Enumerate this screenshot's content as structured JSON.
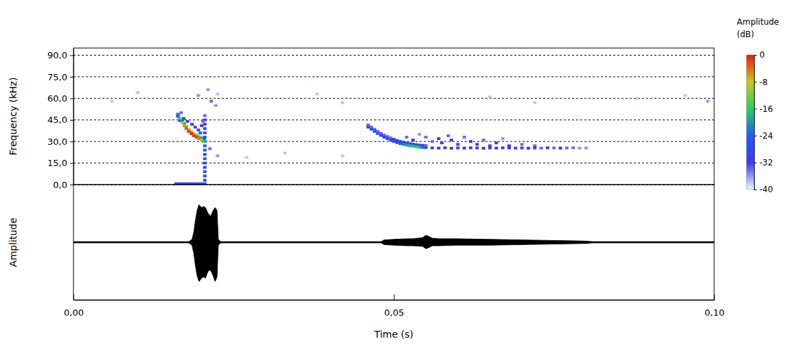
{
  "chart_data": [
    {
      "type": "heatmap",
      "y_label": "Frequency (kHz)",
      "xlim": [
        0,
        0.1
      ],
      "ylim": [
        0,
        95
      ],
      "yticks": [
        {
          "value": 0,
          "label": "0,0"
        },
        {
          "value": 15,
          "label": "15,0"
        },
        {
          "value": 30,
          "label": "30,0"
        },
        {
          "value": 45,
          "label": "45,0"
        },
        {
          "value": 60,
          "label": "60,0"
        },
        {
          "value": 75,
          "label": "75,0"
        },
        {
          "value": 90,
          "label": "90,0"
        }
      ],
      "grid": true,
      "tick_labels": "y",
      "colorbar": {
        "title": "Amplitude (dB)",
        "range": [
          -40,
          0
        ],
        "ticks": [
          0,
          -8,
          -16,
          -24,
          -32,
          -40
        ]
      },
      "cells": [
        [
          0.0195,
          62,
          -36
        ],
        [
          0.021,
          66,
          -36
        ],
        [
          0.0215,
          58,
          -34
        ],
        [
          0.0222,
          55,
          -36
        ],
        [
          0.0225,
          63,
          -38
        ],
        [
          0.01,
          64,
          -38
        ],
        [
          0.006,
          58,
          -38
        ],
        [
          0.03,
          60,
          -38
        ],
        [
          0.038,
          63,
          -38
        ],
        [
          0.042,
          57,
          -38
        ],
        [
          0.065,
          61,
          -38
        ],
        [
          0.072,
          57,
          -38
        ],
        [
          0.088,
          60,
          -38
        ],
        [
          0.0955,
          62,
          -38
        ],
        [
          0.099,
          58,
          -36
        ],
        [
          0.033,
          22,
          -38
        ],
        [
          0.042,
          20,
          -38
        ],
        [
          0.027,
          19,
          -38
        ],
        [
          0.0225,
          20,
          -36
        ],
        [
          0.0213,
          25,
          -34
        ],
        [
          0.016,
          0.6,
          -30
        ],
        [
          0.0165,
          0.6,
          -30
        ],
        [
          0.017,
          0.6,
          -30
        ],
        [
          0.0175,
          0.6,
          -30
        ],
        [
          0.018,
          0.6,
          -30
        ],
        [
          0.0185,
          0.6,
          -30
        ],
        [
          0.019,
          0.6,
          -30
        ],
        [
          0.0195,
          0.6,
          -30
        ],
        [
          0.02,
          0.6,
          -30
        ],
        [
          0.0205,
          0.6,
          -28
        ],
        [
          0.0205,
          3,
          -30
        ],
        [
          0.0205,
          6,
          -30
        ],
        [
          0.0205,
          9,
          -28
        ],
        [
          0.0205,
          12,
          -30
        ],
        [
          0.0205,
          15,
          -30
        ],
        [
          0.0205,
          18,
          -28
        ],
        [
          0.0205,
          21,
          -30
        ],
        [
          0.0205,
          24,
          -26
        ],
        [
          0.0205,
          27,
          -26
        ],
        [
          0.0205,
          30,
          -24
        ],
        [
          0.0205,
          33,
          -28
        ],
        [
          0.0205,
          36,
          -30
        ],
        [
          0.0205,
          39,
          -30
        ],
        [
          0.0205,
          42,
          -32
        ],
        [
          0.0205,
          45,
          -32
        ],
        [
          0.0205,
          48,
          -34
        ],
        [
          0.0172,
          46,
          -32
        ],
        [
          0.0178,
          44,
          -30
        ],
        [
          0.0185,
          42,
          -32
        ],
        [
          0.019,
          40,
          -28
        ],
        [
          0.0195,
          38,
          -30
        ],
        [
          0.0198,
          36,
          -26
        ],
        [
          0.02,
          41,
          -32
        ],
        [
          0.0202,
          44,
          -34
        ],
        [
          0.0168,
          50,
          -34
        ],
        [
          0.0163,
          47.5,
          -30
        ],
        [
          0.0166,
          44.5,
          -26
        ],
        [
          0.017,
          44.5,
          -22
        ],
        [
          0.0173,
          42.5,
          -18
        ],
        [
          0.0176,
          40.5,
          -14
        ],
        [
          0.018,
          38.5,
          -10
        ],
        [
          0.0184,
          37,
          -8
        ],
        [
          0.0188,
          35.5,
          -10
        ],
        [
          0.0192,
          34.5,
          -12
        ],
        [
          0.0196,
          33.5,
          -14
        ],
        [
          0.02,
          32.5,
          -20
        ],
        [
          0.0204,
          31.5,
          -24
        ],
        [
          0.0163,
          49,
          -22
        ],
        [
          0.0166,
          46,
          -16
        ],
        [
          0.017,
          43,
          -10
        ],
        [
          0.0173,
          41,
          -6
        ],
        [
          0.0176,
          39,
          -3
        ],
        [
          0.018,
          37,
          -1
        ],
        [
          0.0184,
          35.5,
          0
        ],
        [
          0.0188,
          34,
          -1
        ],
        [
          0.0192,
          33,
          -2
        ],
        [
          0.0196,
          32,
          -4
        ],
        [
          0.02,
          31,
          -10
        ],
        [
          0.0204,
          30,
          -16
        ],
        [
          0.056,
          30,
          -34
        ],
        [
          0.057,
          32,
          -32
        ],
        [
          0.0575,
          29,
          -30
        ],
        [
          0.0585,
          34,
          -34
        ],
        [
          0.059,
          31,
          -32
        ],
        [
          0.06,
          28,
          -30
        ],
        [
          0.061,
          33,
          -34
        ],
        [
          0.062,
          30,
          -32
        ],
        [
          0.063,
          28,
          -30
        ],
        [
          0.064,
          31,
          -34
        ],
        [
          0.065,
          27,
          -32
        ],
        [
          0.066,
          29,
          -30
        ],
        [
          0.067,
          32,
          -36
        ],
        [
          0.068,
          27,
          -32
        ],
        [
          0.07,
          28,
          -34
        ],
        [
          0.072,
          27,
          -34
        ],
        [
          0.055,
          33,
          -34
        ],
        [
          0.054,
          35,
          -36
        ],
        [
          0.053,
          31,
          -32
        ],
        [
          0.052,
          33,
          -34
        ],
        [
          0.056,
          25.5,
          -30
        ],
        [
          0.057,
          25.4,
          -32
        ],
        [
          0.058,
          25.6,
          -32
        ],
        [
          0.059,
          25.3,
          -30
        ],
        [
          0.06,
          25.5,
          -32
        ],
        [
          0.061,
          25.4,
          -32
        ],
        [
          0.062,
          25.6,
          -30
        ],
        [
          0.063,
          25.5,
          -32
        ],
        [
          0.064,
          25.3,
          -32
        ],
        [
          0.065,
          25.5,
          -30
        ],
        [
          0.066,
          25.4,
          -32
        ],
        [
          0.067,
          25.6,
          -32
        ],
        [
          0.068,
          25.5,
          -32
        ],
        [
          0.069,
          25.4,
          -30
        ],
        [
          0.07,
          25.5,
          -32
        ],
        [
          0.071,
          25.3,
          -32
        ],
        [
          0.072,
          25.5,
          -32
        ],
        [
          0.073,
          25.4,
          -34
        ],
        [
          0.074,
          25.6,
          -32
        ],
        [
          0.075,
          25.5,
          -34
        ],
        [
          0.076,
          25.4,
          -32
        ],
        [
          0.077,
          25.5,
          -34
        ],
        [
          0.078,
          25.6,
          -34
        ],
        [
          0.079,
          25.4,
          -36
        ],
        [
          0.08,
          25.5,
          -36
        ],
        [
          0.046,
          41.5,
          -34
        ],
        [
          0.0465,
          40,
          -34
        ],
        [
          0.047,
          38.5,
          -34
        ],
        [
          0.0475,
          37,
          -34
        ],
        [
          0.048,
          35.7,
          -34
        ],
        [
          0.0485,
          34.5,
          -34
        ],
        [
          0.049,
          33.5,
          -34
        ],
        [
          0.0495,
          32.5,
          -34
        ],
        [
          0.05,
          31.5,
          -32
        ],
        [
          0.0505,
          30.7,
          -32
        ],
        [
          0.051,
          30,
          -32
        ],
        [
          0.0515,
          29.5,
          -30
        ],
        [
          0.052,
          29,
          -30
        ],
        [
          0.0525,
          28.5,
          -28
        ],
        [
          0.053,
          28.1,
          -28
        ],
        [
          0.0535,
          27.8,
          -28
        ],
        [
          0.054,
          27.5,
          -30
        ],
        [
          0.0545,
          27.3,
          -32
        ],
        [
          0.055,
          27.2,
          -34
        ],
        [
          0.046,
          40,
          -28
        ],
        [
          0.0465,
          38.5,
          -28
        ],
        [
          0.047,
          37,
          -26
        ],
        [
          0.0475,
          35.5,
          -28
        ],
        [
          0.048,
          34.2,
          -28
        ],
        [
          0.0485,
          33,
          -30
        ],
        [
          0.049,
          32,
          -28
        ],
        [
          0.0495,
          31,
          -28
        ],
        [
          0.05,
          30,
          -26
        ],
        [
          0.0505,
          29.2,
          -26
        ],
        [
          0.051,
          28.5,
          -24
        ],
        [
          0.0515,
          28,
          -22
        ],
        [
          0.052,
          27.5,
          -20
        ],
        [
          0.0525,
          27,
          -18
        ],
        [
          0.053,
          26.6,
          -16
        ],
        [
          0.0535,
          26.3,
          -16
        ],
        [
          0.054,
          26,
          -18
        ],
        [
          0.0545,
          25.8,
          -22
        ],
        [
          0.055,
          25.7,
          -26
        ]
      ]
    },
    {
      "type": "area",
      "x_label": "Time (s)",
      "y_label": "Amplitude",
      "xlim": [
        0,
        0.1
      ],
      "ylim": [
        -1,
        1
      ],
      "xticks": [
        {
          "value": 0,
          "label": "0,00"
        },
        {
          "value": 0.05,
          "label": "0,05"
        },
        {
          "value": 0.1,
          "label": "0,10"
        }
      ],
      "tick_labels": "x",
      "color": "#000000",
      "x": [
        0,
        0.018,
        0.0185,
        0.0188,
        0.019,
        0.0193,
        0.0196,
        0.02,
        0.0203,
        0.0206,
        0.021,
        0.0214,
        0.0218,
        0.0221,
        0.0224,
        0.0226,
        0.023,
        0.048,
        0.0485,
        0.05,
        0.052,
        0.053,
        0.0545,
        0.055,
        0.0555,
        0.056,
        0.057,
        0.06,
        0.065,
        0.07,
        0.075,
        0.08,
        0.081,
        0.1
      ],
      "series": [
        {
          "values": [
            0.01,
            0.01,
            0.05,
            0.18,
            0.35,
            0.55,
            0.65,
            0.6,
            0.62,
            0.6,
            0.5,
            0.45,
            0.55,
            0.6,
            0.55,
            0.05,
            0.01,
            0.01,
            0.04,
            0.05,
            0.06,
            0.06,
            0.08,
            0.12,
            0.1,
            0.07,
            0.06,
            0.06,
            0.05,
            0.04,
            0.03,
            0.02,
            0.01,
            0.01
          ]
        },
        {
          "values": [
            -0.01,
            -0.01,
            -0.05,
            -0.2,
            -0.38,
            -0.58,
            -0.68,
            -0.62,
            -0.6,
            -0.62,
            -0.5,
            -0.48,
            -0.58,
            -0.68,
            -0.6,
            -0.05,
            -0.01,
            -0.01,
            -0.04,
            -0.05,
            -0.06,
            -0.06,
            -0.07,
            -0.11,
            -0.09,
            -0.06,
            -0.06,
            -0.05,
            -0.05,
            -0.04,
            -0.03,
            -0.02,
            -0.01,
            -0.01
          ]
        }
      ]
    }
  ]
}
